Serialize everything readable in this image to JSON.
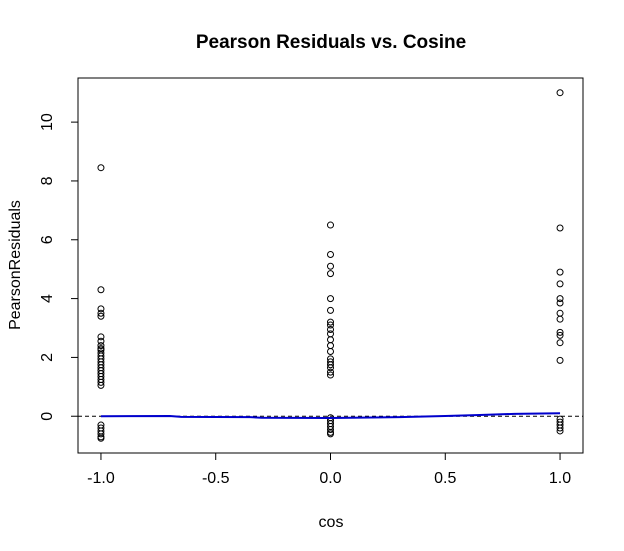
{
  "chart_data": {
    "type": "scatter",
    "title": "Pearson Residuals vs. Cosine",
    "xlabel": "cos",
    "ylabel": "PearsonResiduals",
    "xlim": [
      -1.1,
      1.1
    ],
    "ylim": [
      -1.25,
      11.5
    ],
    "xticks": [
      "-1.0",
      "-0.5",
      "0.0",
      "0.5",
      "1.0"
    ],
    "yticks": [
      "0",
      "2",
      "4",
      "6",
      "8",
      "10"
    ],
    "grid": false,
    "reference_line_y": 0,
    "points": [
      [
        -1,
        8.45
      ],
      [
        -1,
        4.3
      ],
      [
        -1,
        3.65
      ],
      [
        -1,
        3.5
      ],
      [
        -1,
        3.4
      ],
      [
        -1,
        2.7
      ],
      [
        -1,
        2.55
      ],
      [
        -1,
        2.4
      ],
      [
        -1,
        2.3
      ],
      [
        -1,
        2.25
      ],
      [
        -1,
        2.15
      ],
      [
        -1,
        2.05
      ],
      [
        -1,
        1.95
      ],
      [
        -1,
        1.85
      ],
      [
        -1,
        1.75
      ],
      [
        -1,
        1.65
      ],
      [
        -1,
        1.55
      ],
      [
        -1,
        1.45
      ],
      [
        -1,
        1.35
      ],
      [
        -1,
        1.25
      ],
      [
        -1,
        1.15
      ],
      [
        -1,
        1.05
      ],
      [
        -1,
        -0.3
      ],
      [
        -1,
        -0.4
      ],
      [
        -1,
        -0.5
      ],
      [
        -1,
        -0.6
      ],
      [
        -1,
        -0.7
      ],
      [
        -1,
        -0.75
      ],
      [
        0,
        6.5
      ],
      [
        0,
        5.5
      ],
      [
        0,
        5.1
      ],
      [
        0,
        4.85
      ],
      [
        0,
        4.0
      ],
      [
        0,
        3.6
      ],
      [
        0,
        3.2
      ],
      [
        0,
        3.1
      ],
      [
        0,
        2.95
      ],
      [
        0,
        2.8
      ],
      [
        0,
        2.6
      ],
      [
        0,
        2.4
      ],
      [
        0,
        2.2
      ],
      [
        0,
        1.95
      ],
      [
        0,
        1.85
      ],
      [
        0,
        1.75
      ],
      [
        0,
        1.65
      ],
      [
        0,
        1.5
      ],
      [
        0,
        1.4
      ],
      [
        0,
        -0.05
      ],
      [
        0,
        -0.15
      ],
      [
        0,
        -0.25
      ],
      [
        0,
        -0.35
      ],
      [
        0,
        -0.45
      ],
      [
        0,
        -0.55
      ],
      [
        0,
        -0.6
      ],
      [
        1,
        11.0
      ],
      [
        1,
        6.4
      ],
      [
        1,
        4.9
      ],
      [
        1,
        4.5
      ],
      [
        1,
        4.0
      ],
      [
        1,
        3.85
      ],
      [
        1,
        3.5
      ],
      [
        1,
        3.3
      ],
      [
        1,
        2.85
      ],
      [
        1,
        2.75
      ],
      [
        1,
        2.5
      ],
      [
        1,
        1.9
      ],
      [
        1,
        -0.1
      ],
      [
        1,
        -0.2
      ],
      [
        1,
        -0.3
      ],
      [
        1,
        -0.4
      ],
      [
        1,
        -0.5
      ]
    ],
    "smooth_line": {
      "color": "#0000cc",
      "points": [
        [
          -1.0,
          0.0
        ],
        [
          -0.7,
          0.01
        ],
        [
          -0.65,
          -0.02
        ],
        [
          -0.35,
          -0.03
        ],
        [
          -0.3,
          -0.05
        ],
        [
          0.0,
          -0.06
        ],
        [
          0.3,
          -0.03
        ],
        [
          0.5,
          0.01
        ],
        [
          0.65,
          0.04
        ],
        [
          0.8,
          0.08
        ],
        [
          1.0,
          0.1
        ]
      ]
    }
  }
}
